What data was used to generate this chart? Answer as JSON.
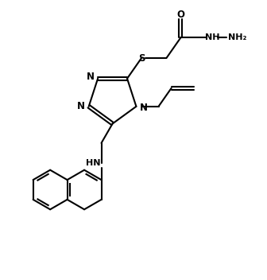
{
  "bg_color": "#ffffff",
  "line_color": "#000000",
  "lw": 1.5,
  "figsize": [
    3.36,
    3.52
  ],
  "dpi": 100,
  "xlim": [
    0,
    10
  ],
  "ylim": [
    0,
    10.46
  ]
}
